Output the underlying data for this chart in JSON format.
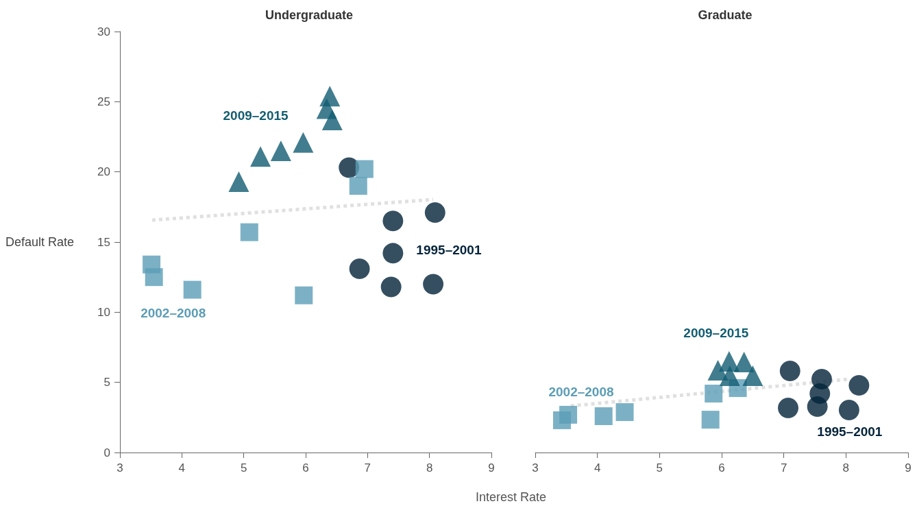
{
  "chart_data": [
    {
      "type": "scatter",
      "title": "Undergraduate",
      "xlabel": "Interest Rate",
      "ylabel": "Default Rate",
      "xlim": [
        3,
        9
      ],
      "xticks": [
        3,
        4,
        5,
        6,
        7,
        8,
        9
      ],
      "ylim": [
        0,
        30
      ],
      "yticks": [
        0,
        5,
        10,
        15,
        20,
        25,
        30
      ],
      "grid": false,
      "legend": false,
      "series": [
        {
          "name": "1995–2001",
          "color": "#03233a",
          "marker": "circle",
          "x": [
            6.7,
            7.41,
            8.09,
            7.41,
            6.87,
            7.38,
            8.06
          ],
          "values": [
            20.3,
            16.5,
            17.1,
            14.2,
            13.1,
            11.8,
            12.0
          ]
        },
        {
          "name": "2002–2008",
          "color": "#5b9db6",
          "marker": "square",
          "x": [
            6.95,
            6.85,
            5.09,
            3.51,
            3.55,
            4.17,
            5.97
          ],
          "values": [
            20.2,
            19.0,
            15.7,
            13.4,
            12.5,
            11.6,
            11.2
          ]
        },
        {
          "name": "2009–2015",
          "color": "#125d72",
          "marker": "triangle",
          "x": [
            4.92,
            5.27,
            5.6,
            5.96,
            6.39,
            6.34,
            6.43
          ],
          "values": [
            19.3,
            21.1,
            21.5,
            22.1,
            25.4,
            24.5,
            23.7
          ]
        },
        {
          "type": "line",
          "color": "#e0e0e0",
          "line_style": "dotted",
          "marker": "none",
          "x": [
            3.52,
            8.06
          ],
          "values": [
            16.56,
            18.03
          ]
        }
      ]
    },
    {
      "type": "scatter",
      "title": "Graduate",
      "xlim": [
        3,
        9
      ],
      "xticks": [
        3,
        4,
        5,
        6,
        7,
        8,
        9
      ],
      "ylim": [
        0,
        30
      ],
      "yticks": [
        0,
        5,
        10,
        15,
        20,
        25,
        30
      ],
      "grid": false,
      "legend": false,
      "tick_labels": "x",
      "series": [
        {
          "name": "1995–2001",
          "color": "#03233a",
          "marker": "circle",
          "x": [
            7.1,
            7.61,
            7.58,
            8.21,
            7.07,
            7.54,
            8.05
          ],
          "values": [
            5.81,
            5.23,
            4.2,
            4.79,
            3.18,
            3.27,
            3.03
          ]
        },
        {
          "name": "2002–2008",
          "color": "#5b9db6",
          "marker": "square",
          "x": [
            3.43,
            3.53,
            4.1,
            4.44,
            5.82,
            5.87,
            6.26
          ],
          "values": [
            2.3,
            2.69,
            2.59,
            2.88,
            2.34,
            4.2,
            4.59
          ]
        },
        {
          "name": "2009–2015",
          "color": "#125d72",
          "marker": "triangle",
          "x": [
            5.94,
            6.12,
            6.36,
            6.5,
            6.13
          ],
          "values": [
            5.86,
            6.5,
            6.45,
            5.47,
            5.47
          ]
        },
        {
          "type": "line",
          "color": "#e0e0e0",
          "line_style": "dotted",
          "marker": "none",
          "x": [
            3.57,
            8.06
          ],
          "values": [
            3.32,
            5.23
          ]
        }
      ]
    }
  ]
}
